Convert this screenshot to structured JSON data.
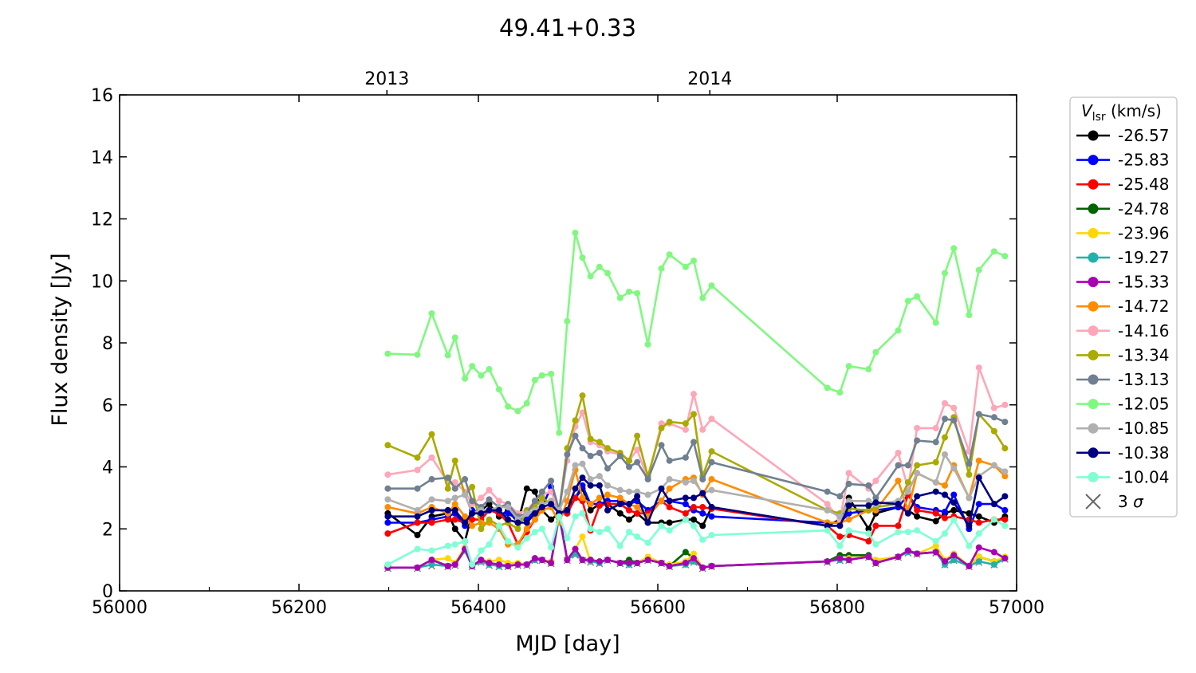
{
  "chart_data": {
    "type": "line",
    "title": "49.41+0.33",
    "xlabel": "MJD [day]",
    "ylabel": "Flux density [Jy]",
    "xlim": [
      56000,
      57000
    ],
    "ylim": [
      0,
      16
    ],
    "xticks": [
      56000,
      56200,
      56400,
      56600,
      56800,
      57000
    ],
    "yticks": [
      0,
      2,
      4,
      6,
      8,
      10,
      12,
      14,
      16
    ],
    "top_axis": {
      "ticks": [
        {
          "label": "2013",
          "mjd": 56298
        },
        {
          "label": "2014",
          "mjd": 56658
        }
      ]
    },
    "legend": {
      "title_main": "V",
      "title_sub": "lsr",
      "title_unit": " (km/s)",
      "placement": "outside-right"
    },
    "x": [
      56299,
      56332,
      56348,
      56366,
      56374,
      56385,
      56393,
      56403,
      56412,
      56423,
      56433,
      56444,
      56454,
      56463,
      56471,
      56481,
      56490,
      56499,
      56508,
      56516,
      56525,
      56535,
      56544,
      56558,
      56568,
      56577,
      56589,
      56604,
      56613,
      56631,
      56640,
      56650,
      56660,
      56789,
      56803,
      56813,
      56835,
      56843,
      56868,
      56879,
      56889,
      56910,
      56920,
      56930,
      56947,
      56958,
      56975,
      56987
    ],
    "series": [
      {
        "name": "-26.57",
        "color": "#000000",
        "values": [
          2.5,
          1.8,
          2.4,
          2.5,
          2.0,
          1.6,
          2.5,
          2.6,
          2.8,
          2.4,
          2.6,
          2.2,
          3.3,
          3.2,
          2.6,
          2.3,
          2.5,
          2.6,
          3.0,
          3.3,
          2.6,
          2.8,
          2.8,
          2.5,
          2.3,
          2.5,
          2.2,
          2.2,
          2.2,
          2.3,
          2.3,
          2.1,
          2.7,
          2.1,
          2.3,
          3.0,
          2.0,
          2.5,
          2.7,
          2.6,
          2.4,
          2.25,
          2.5,
          2.6,
          2.5,
          2.4,
          2.2,
          2.4
        ]
      },
      {
        "name": "-25.83",
        "color": "#0000ff",
        "values": [
          2.2,
          2.2,
          2.3,
          2.4,
          2.5,
          2.1,
          2.6,
          2.5,
          2.6,
          2.5,
          2.5,
          2.3,
          2.3,
          2.6,
          2.7,
          3.35,
          2.5,
          2.5,
          3.0,
          3.4,
          2.8,
          2.8,
          2.9,
          2.9,
          2.8,
          2.9,
          2.6,
          2.9,
          2.9,
          2.8,
          2.6,
          2.5,
          2.4,
          2.2,
          2.2,
          2.5,
          2.6,
          2.6,
          2.7,
          3.1,
          2.7,
          2.6,
          2.55,
          3.1,
          2.0,
          2.8,
          2.8,
          2.6
        ]
      },
      {
        "name": "-25.48",
        "color": "#ff0000",
        "values": [
          1.85,
          2.2,
          2.2,
          2.3,
          2.3,
          2.2,
          2.3,
          2.3,
          2.6,
          2.5,
          2.2,
          1.5,
          1.9,
          2.3,
          2.8,
          2.9,
          2.5,
          2.5,
          3.0,
          2.9,
          1.95,
          2.75,
          2.8,
          2.8,
          2.6,
          2.5,
          2.5,
          2.9,
          2.7,
          2.5,
          2.7,
          2.7,
          2.65,
          2.1,
          1.75,
          1.8,
          1.6,
          2.1,
          2.1,
          3.1,
          2.6,
          2.5,
          2.35,
          2.4,
          2.3,
          2.2,
          2.3,
          2.3
        ]
      },
      {
        "name": "-24.78",
        "color": "#006400",
        "values": [
          0.75,
          0.75,
          1.0,
          0.8,
          0.85,
          1.35,
          0.8,
          1.0,
          0.9,
          0.85,
          0.8,
          0.85,
          0.85,
          1.05,
          1.0,
          0.9,
          2.5,
          1.0,
          1.35,
          1.0,
          1.0,
          0.95,
          1.0,
          0.9,
          1.0,
          0.9,
          1.0,
          0.9,
          0.8,
          1.25,
          1.05,
          0.75,
          0.8,
          0.95,
          1.15,
          1.15,
          1.15,
          0.9,
          1.1,
          1.3,
          1.2,
          1.25,
          0.95,
          1.15,
          0.8,
          1.1,
          0.95,
          1.05
        ]
      },
      {
        "name": "-23.96",
        "color": "#ffd700",
        "values": [
          0.75,
          0.75,
          1.0,
          1.05,
          0.9,
          1.4,
          0.8,
          1.0,
          0.95,
          1.0,
          0.9,
          0.9,
          0.85,
          1.05,
          1.0,
          0.95,
          2.4,
          1.0,
          1.35,
          1.75,
          0.95,
          0.95,
          1.0,
          0.9,
          0.9,
          0.9,
          1.1,
          0.9,
          0.85,
          0.95,
          1.2,
          0.75,
          0.8,
          0.95,
          1.05,
          1.05,
          1.1,
          1.0,
          1.1,
          1.3,
          1.2,
          1.45,
          1.0,
          1.2,
          0.8,
          1.1,
          0.95,
          1.1
        ]
      },
      {
        "name": "-19.27",
        "color": "#20b2aa",
        "values": [
          0.75,
          0.75,
          0.85,
          0.8,
          0.85,
          1.3,
          0.8,
          0.95,
          0.85,
          0.8,
          0.8,
          0.85,
          0.85,
          1.0,
          1.0,
          0.9,
          2.4,
          1.0,
          1.2,
          1.0,
          0.95,
          0.9,
          1.0,
          0.9,
          0.85,
          0.9,
          1.0,
          0.9,
          0.8,
          0.85,
          0.95,
          0.75,
          0.8,
          0.95,
          1.0,
          1.0,
          1.1,
          0.9,
          1.1,
          1.25,
          1.2,
          1.25,
          0.85,
          1.0,
          0.8,
          0.95,
          0.85,
          1.05
        ]
      },
      {
        "name": "-15.33",
        "color": "#aa00b4",
        "values": [
          0.75,
          0.75,
          1.0,
          0.8,
          0.85,
          1.35,
          0.8,
          1.0,
          0.9,
          0.85,
          0.8,
          0.85,
          0.85,
          1.05,
          1.0,
          0.9,
          2.5,
          1.0,
          1.35,
          1.0,
          1.0,
          0.95,
          1.0,
          0.9,
          0.9,
          0.9,
          1.0,
          0.9,
          0.8,
          0.9,
          1.05,
          0.75,
          0.8,
          0.95,
          1.05,
          1.0,
          1.1,
          0.9,
          1.1,
          1.3,
          1.2,
          1.25,
          0.95,
          1.15,
          0.8,
          1.4,
          1.25,
          1.05
        ]
      },
      {
        "name": "-14.72",
        "color": "#ff8c00",
        "values": [
          2.7,
          2.5,
          2.7,
          2.5,
          2.8,
          2.4,
          2.1,
          2.2,
          2.2,
          2.0,
          1.5,
          1.5,
          2.0,
          2.3,
          2.6,
          2.7,
          2.2,
          2.9,
          3.9,
          3.0,
          2.8,
          3.0,
          3.1,
          3.0,
          2.8,
          2.7,
          2.4,
          2.9,
          3.3,
          3.6,
          3.65,
          3.1,
          3.6,
          2.2,
          2.2,
          2.3,
          2.6,
          2.6,
          3.55,
          2.6,
          3.8,
          3.5,
          3.4,
          4.05,
          3.0,
          4.2,
          4.05,
          3.7
        ]
      },
      {
        "name": "-14.16",
        "color": "#ffa6b8",
        "values": [
          3.75,
          3.9,
          4.3,
          3.5,
          3.5,
          3.2,
          2.8,
          3.0,
          3.25,
          2.9,
          2.8,
          2.5,
          2.6,
          2.9,
          3.1,
          3.2,
          2.6,
          4.2,
          5.3,
          5.75,
          4.8,
          4.7,
          4.5,
          4.4,
          4.2,
          4.55,
          3.6,
          5.4,
          5.4,
          5.2,
          6.35,
          5.2,
          5.55,
          2.8,
          2.3,
          3.8,
          3.3,
          3.55,
          4.45,
          3.3,
          5.25,
          5.25,
          6.05,
          5.9,
          4.5,
          7.2,
          5.9,
          6.0
        ]
      },
      {
        "name": "-13.34",
        "color": "#aaaa00",
        "values": [
          4.7,
          4.3,
          5.05,
          3.3,
          4.2,
          3.1,
          3.35,
          2.0,
          2.3,
          2.1,
          2.2,
          2.0,
          2.6,
          2.7,
          3.0,
          2.8,
          2.6,
          4.6,
          5.5,
          6.3,
          4.9,
          4.8,
          4.6,
          4.45,
          4.2,
          5.0,
          3.7,
          5.25,
          5.45,
          5.4,
          5.7,
          3.7,
          4.5,
          2.6,
          2.5,
          2.65,
          2.6,
          2.7,
          2.8,
          3.5,
          4.05,
          4.15,
          4.95,
          5.6,
          3.75,
          5.7,
          5.15,
          4.6
        ]
      },
      {
        "name": "-13.13",
        "color": "#708090",
        "values": [
          3.3,
          3.3,
          3.6,
          3.65,
          3.3,
          3.6,
          2.9,
          2.7,
          2.95,
          2.7,
          2.8,
          2.4,
          2.5,
          2.9,
          3.2,
          3.55,
          2.6,
          4.4,
          5.0,
          4.6,
          4.35,
          4.45,
          3.95,
          4.35,
          4.0,
          4.15,
          3.6,
          4.7,
          4.2,
          4.3,
          4.8,
          3.6,
          4.15,
          3.2,
          3.05,
          3.45,
          3.4,
          3.0,
          4.05,
          4.05,
          4.85,
          4.8,
          5.55,
          5.5,
          4.1,
          5.7,
          5.6,
          5.45
        ]
      },
      {
        "name": "-12.05",
        "color": "#80f880",
        "values": [
          7.65,
          7.62,
          8.95,
          7.6,
          8.17,
          6.85,
          7.25,
          6.95,
          7.15,
          6.5,
          5.95,
          5.8,
          6.05,
          6.8,
          6.95,
          7.0,
          5.1,
          8.7,
          11.55,
          10.75,
          10.15,
          10.45,
          10.25,
          9.45,
          9.65,
          9.6,
          7.95,
          10.4,
          10.85,
          10.45,
          10.65,
          9.45,
          9.85,
          6.55,
          6.4,
          7.25,
          7.15,
          7.7,
          8.4,
          9.35,
          9.5,
          8.65,
          10.25,
          11.05,
          8.9,
          10.35,
          10.95,
          10.8
        ]
      },
      {
        "name": "-10.85",
        "color": "#b0b0b0",
        "values": [
          2.95,
          2.6,
          2.95,
          2.9,
          3.0,
          3.1,
          2.5,
          2.6,
          2.6,
          2.7,
          2.7,
          2.3,
          2.5,
          2.6,
          2.8,
          2.9,
          2.6,
          3.2,
          4.05,
          4.1,
          3.6,
          3.7,
          3.4,
          3.25,
          3.2,
          3.2,
          3.1,
          3.3,
          3.6,
          3.5,
          3.55,
          3.15,
          3.25,
          2.6,
          2.4,
          2.9,
          2.9,
          2.8,
          2.9,
          3.2,
          3.8,
          3.5,
          4.4,
          3.95,
          3.0,
          3.7,
          4.05,
          3.85
        ]
      },
      {
        "name": "-10.38",
        "color": "#000080",
        "values": [
          2.4,
          2.4,
          2.6,
          2.6,
          2.6,
          2.2,
          2.5,
          2.5,
          2.6,
          2.6,
          2.3,
          2.2,
          2.2,
          2.5,
          2.7,
          2.8,
          2.5,
          2.6,
          3.3,
          3.65,
          3.4,
          3.4,
          2.6,
          2.8,
          2.8,
          3.05,
          2.2,
          3.3,
          2.9,
          3.0,
          3.0,
          3.15,
          2.7,
          2.1,
          2.1,
          2.75,
          2.75,
          2.85,
          2.8,
          2.5,
          3.05,
          3.2,
          3.1,
          2.85,
          2.1,
          3.65,
          2.8,
          3.05
        ]
      },
      {
        "name": "-10.04",
        "color": "#7fffd4",
        "values": [
          0.85,
          1.35,
          1.3,
          1.45,
          1.5,
          1.6,
          0.85,
          1.3,
          1.5,
          2.1,
          1.6,
          1.4,
          1.7,
          1.9,
          2.0,
          1.4,
          2.4,
          1.7,
          2.4,
          2.5,
          2.0,
          1.9,
          2.0,
          1.45,
          1.9,
          1.75,
          1.55,
          2.1,
          1.95,
          2.3,
          2.1,
          1.65,
          1.8,
          1.95,
          1.45,
          1.95,
          1.85,
          1.5,
          1.9,
          1.9,
          1.95,
          1.6,
          1.85,
          2.3,
          1.45,
          1.85,
          2.3,
          2.1
        ]
      }
    ],
    "sigma": {
      "name": "3",
      "symbol": "σ",
      "color": "#808080",
      "values": [
        0.72,
        0.72,
        0.8,
        0.78,
        0.82,
        1.25,
        0.78,
        0.92,
        0.82,
        0.78,
        0.78,
        0.82,
        0.82,
        0.98,
        0.98,
        0.88,
        2.3,
        0.98,
        1.15,
        0.98,
        0.92,
        0.88,
        0.98,
        0.88,
        0.84,
        0.88,
        0.98,
        0.88,
        0.78,
        0.84,
        0.92,
        0.72,
        0.78,
        0.92,
        0.98,
        0.98,
        1.08,
        0.88,
        1.08,
        1.22,
        1.18,
        1.22,
        0.84,
        0.98,
        0.78,
        0.92,
        0.84,
        1.02
      ]
    }
  }
}
